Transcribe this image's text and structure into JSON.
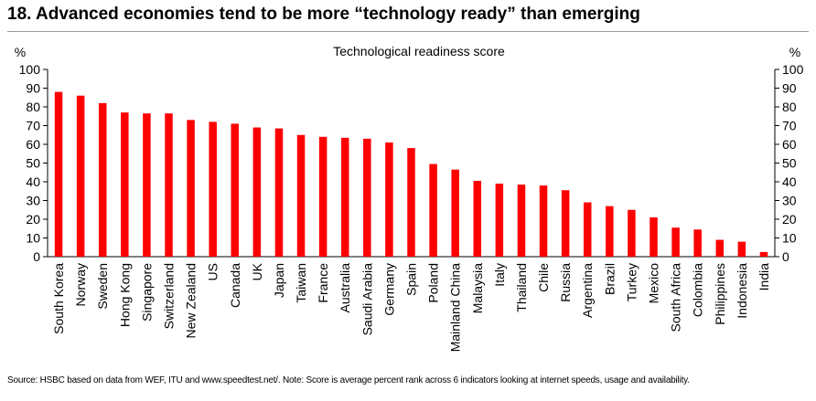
{
  "header": {
    "title": "18. Advanced economies tend to be more “technology ready” than emerging"
  },
  "footer": {
    "source": "Source: HSBC based on data from WEF, ITU and www.speedtest.net/. Note: Score is average percent rank across 6 indicators looking at internet speeds, usage and availability."
  },
  "chart_data": {
    "type": "bar",
    "title": "Technological readiness score",
    "ylabel_left": "%",
    "ylabel_right": "%",
    "ylim": [
      0,
      100
    ],
    "yticks": [
      0,
      10,
      20,
      30,
      40,
      50,
      60,
      70,
      80,
      90,
      100
    ],
    "grid": false,
    "bar_color": "#ff0000",
    "categories": [
      "South Korea",
      "Norway",
      "Sweden",
      "Hong Kong",
      "Singapore",
      "Switzerland",
      "New Zealand",
      "US",
      "Canada",
      "UK",
      "Japan",
      "Taiwan",
      "France",
      "Australia",
      "Saudi Arabia",
      "Germany",
      "Spain",
      "Poland",
      "Mainland China",
      "Malaysia",
      "Italy",
      "Thailand",
      "Chile",
      "Russia",
      "Argentina",
      "Brazil",
      "Turkey",
      "Mexico",
      "South Africa",
      "Colombia",
      "Philippines",
      "Indonesia",
      "India"
    ],
    "values": [
      88,
      86,
      82,
      77,
      76.5,
      76.5,
      73,
      72,
      71,
      69,
      68.5,
      65,
      64,
      63.5,
      63,
      61,
      58,
      49.5,
      46.5,
      40.5,
      39,
      38.5,
      38,
      35.5,
      29,
      27,
      25,
      21,
      15.5,
      14.5,
      9,
      8,
      2.5
    ]
  }
}
